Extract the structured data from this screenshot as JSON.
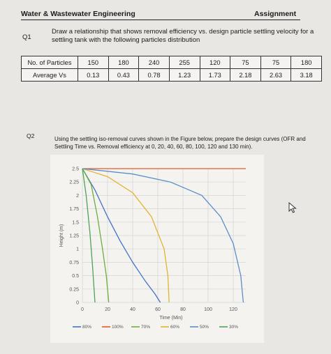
{
  "header": {
    "course": "Water & Wastewater Engineering",
    "assignment": "Assignment"
  },
  "q1": {
    "label": "Q1",
    "text": "Draw a relationship that shows removal efficiency vs. design particle settling velocity for a settling tank with the following particles distribution"
  },
  "table": {
    "rows": [
      {
        "label": "No. of Particles",
        "cells": [
          "150",
          "180",
          "240",
          "255",
          "120",
          "75",
          "75",
          "180"
        ]
      },
      {
        "label": "Average Vs",
        "cells": [
          "0.13",
          "0.43",
          "0.78",
          "1.23",
          "1.73",
          "2.18",
          "2.63",
          "3.18"
        ]
      }
    ]
  },
  "q2": {
    "label": "Q2",
    "text": "Using the settling iso-removal curves shown in the Figure below, prepare the design curves (OFR and Settling Time vs. Removal efficiency at 0, 20, 40, 60, 80, 100, 120 and 130 min)."
  },
  "chart_data": {
    "type": "line",
    "title": "",
    "xlabel": "Time (Min)",
    "ylabel": "Height (m)",
    "xlim": [
      0,
      130
    ],
    "ylim": [
      0,
      2.5
    ],
    "x_ticks": [
      "0",
      "20",
      "40",
      "60",
      "80",
      "100",
      "120"
    ],
    "y_ticks": [
      "0",
      "0.25",
      "0.5",
      "0.75",
      "1",
      "1.25",
      "1.5",
      "1.75",
      "2",
      "2.25",
      "2.5"
    ],
    "grid": true,
    "legend_position": "bottom",
    "series": [
      {
        "name": "80%",
        "color": "#4472c4",
        "points": [
          [
            0,
            2.5
          ],
          [
            10,
            2.1
          ],
          [
            20,
            1.6
          ],
          [
            30,
            1.15
          ],
          [
            40,
            0.75
          ],
          [
            50,
            0.4
          ],
          [
            58,
            0.15
          ],
          [
            62,
            0
          ]
        ]
      },
      {
        "name": "100%",
        "color": "#e05a2b",
        "points": [
          [
            0,
            2.5
          ],
          [
            130,
            2.5
          ]
        ]
      },
      {
        "name": "70%",
        "color": "#6aaf3e",
        "points": [
          [
            0,
            2.5
          ],
          [
            7,
            2.2
          ],
          [
            12,
            1.6
          ],
          [
            16,
            1.0
          ],
          [
            19,
            0.5
          ],
          [
            21,
            0
          ]
        ]
      },
      {
        "name": "60%",
        "color": "#e3b32f",
        "points": [
          [
            0,
            2.5
          ],
          [
            20,
            2.35
          ],
          [
            40,
            2.05
          ],
          [
            55,
            1.6
          ],
          [
            65,
            1.0
          ],
          [
            68,
            0.5
          ],
          [
            69,
            0
          ]
        ]
      },
      {
        "name": "50%",
        "color": "#5b8ec7",
        "points": [
          [
            0,
            2.5
          ],
          [
            40,
            2.4
          ],
          [
            70,
            2.25
          ],
          [
            95,
            2.0
          ],
          [
            110,
            1.6
          ],
          [
            120,
            1.1
          ],
          [
            126,
            0.5
          ],
          [
            128,
            0
          ]
        ]
      },
      {
        "name": "30%",
        "color": "#4fa257",
        "points": [
          [
            0,
            2.5
          ],
          [
            3,
            2.0
          ],
          [
            6,
            1.3
          ],
          [
            8,
            0.7
          ],
          [
            10,
            0
          ]
        ]
      }
    ]
  },
  "icons": {
    "cursor": "mouse-pointer-icon"
  }
}
